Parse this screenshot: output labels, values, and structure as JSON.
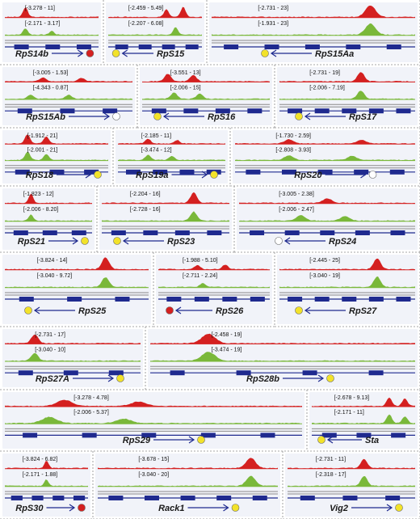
{
  "colors": {
    "red_track": "#d42020",
    "green_track": "#7ab83a",
    "gene_model": "#1f2a8f",
    "arrow": "#1f2a8f",
    "circle_yellow": "#f2e22a",
    "circle_red": "#d42020",
    "circle_white": "#ffffff",
    "divider": "#8a8a8a",
    "panel_bg": "#f1f3f9"
  },
  "panels": [
    {
      "gene": "RpS14b",
      "red_range": "[-3.278 - 11]",
      "green_range": "[-2.171 - 3.17]",
      "dir": "right",
      "circle": "red"
    },
    {
      "gene": "RpS15",
      "red_range": "[-2.459 - 5.49]",
      "green_range": "[-2.207 - 6.08]",
      "dir": "left",
      "circle": "yellow"
    },
    {
      "gene": "RpS15Aa",
      "red_range": "[-2.731 - 23]",
      "green_range": "[-1.931 - 23]",
      "dir": "left",
      "circle": "yellow"
    },
    {
      "gene": "RpS15Ab",
      "red_range": "[-3.005 - 1.53]",
      "green_range": "[-4.343 - 0.87]",
      "dir": "right",
      "circle": "white"
    },
    {
      "gene": "RpS16",
      "red_range": "[-3.551 - 13]",
      "green_range": "[-2.006 - 15]",
      "dir": "left",
      "circle": "yellow"
    },
    {
      "gene": "RpS17",
      "red_range": "[-2.731 - 19]",
      "green_range": "[-2.006 - 7.19]",
      "dir": "left",
      "circle": "yellow"
    },
    {
      "gene": "RpS18",
      "red_range": "[-1.912 - 21]",
      "green_range": "[-2.001 - 21]",
      "dir": "right",
      "circle": "yellow"
    },
    {
      "gene": "RpS19a",
      "red_range": "[-2.185 - 11]",
      "green_range": "[-3.474 - 12]",
      "dir": "right",
      "circle": "yellow"
    },
    {
      "gene": "RpS20",
      "red_range": "[-1.730 - 2.59]",
      "green_range": "[-2.808 - 3.93]",
      "dir": "right",
      "circle": "white"
    },
    {
      "gene": "RpS21",
      "red_range": "[-1.823 - 12]",
      "green_range": "[-2.006 - 8.20]",
      "dir": "right",
      "circle": "yellow"
    },
    {
      "gene": "RpS23",
      "red_range": "[-2.204 - 16]",
      "green_range": "[-2.728 - 16]",
      "dir": "left",
      "circle": "yellow"
    },
    {
      "gene": "RpS24",
      "red_range": "[-3.005 - 2.38]",
      "green_range": "[-2.006 - 2.47]",
      "dir": "left",
      "circle": "white"
    },
    {
      "gene": "RpS25",
      "red_range": "[-3.824 - 14]",
      "green_range": "[-3.040 - 9.72]",
      "dir": "left",
      "circle": "yellow"
    },
    {
      "gene": "RpS26",
      "red_range": "[-1.988 - 5.10]",
      "green_range": "[-2.711 - 2.24]",
      "dir": "left",
      "circle": "red"
    },
    {
      "gene": "RpS27",
      "red_range": "[-2.445 - 25]",
      "green_range": "[-3.040 - 19]",
      "dir": "left",
      "circle": "yellow"
    },
    {
      "gene": "RpS27A",
      "red_range": "[-2.731 - 17]",
      "green_range": "[-3.040 - 10]",
      "dir": "right",
      "circle": "yellow"
    },
    {
      "gene": "RpS28b",
      "red_range": "[-2.458 - 19]",
      "green_range": "[-3.474 - 19]",
      "dir": "right",
      "circle": "yellow"
    },
    {
      "gene": "RpS29",
      "red_range": "[-3.278 - 4.78]",
      "green_range": "[-2.006 - 5.37]",
      "dir": "right",
      "circle": "yellow"
    },
    {
      "gene": "Sta",
      "red_range": "[-2.678 - 9.13]",
      "green_range": "[-2.171 - 11]",
      "dir": "left",
      "circle": "yellow"
    },
    {
      "gene": "RpS30",
      "red_range": "[-3.824 - 6.82]",
      "green_range": "[-2.171 - 1.88]",
      "dir": "right",
      "circle": "red"
    },
    {
      "gene": "Rack1",
      "red_range": "[-3.678 - 15]",
      "green_range": "[-3.040 - 20]",
      "dir": "right",
      "circle": "yellow"
    },
    {
      "gene": "Vig2",
      "red_range": "[-2.731 - 11]",
      "green_range": "[-2.318 - 17]",
      "dir": "right",
      "circle": "yellow"
    }
  ]
}
